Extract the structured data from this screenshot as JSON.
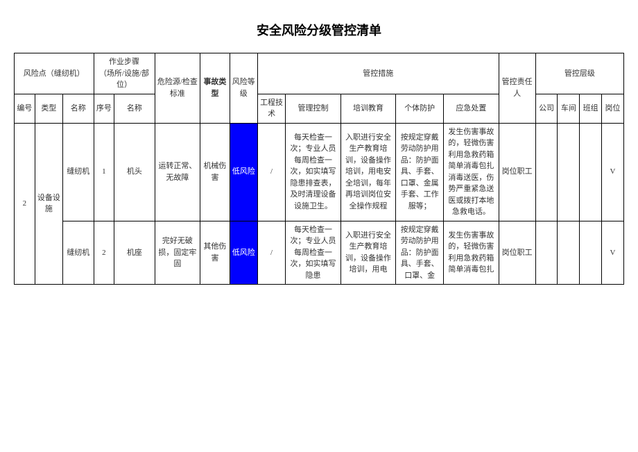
{
  "title": "安全风险分级管控清单",
  "headers": {
    "risk_point": "风险点（缝纫机）",
    "work_step": "作业步骤\n（场所/设施/部位）",
    "hazard_std": "危险源/检查标准",
    "accident_type": "事故类型",
    "risk_level": "风险等级",
    "control_measures": "管控措施",
    "responsible": "管控责任人",
    "control_level": "管控层级",
    "seq": "编号",
    "type": "类型",
    "name": "名称",
    "step_seq": "序号",
    "step_name": "名称",
    "engineering": "工程技术",
    "mgmt_control": "管理控制",
    "training": "培训教育",
    "ppe": "个体防护",
    "emergency": "应急处置",
    "company": "公司",
    "workshop": "车间",
    "team": "班组",
    "post": "岗位"
  },
  "group": {
    "seq": "2",
    "type": "设备设施"
  },
  "rows": [
    {
      "name": "缝纫机",
      "step_seq": "1",
      "step_name": "机头",
      "hazard_std": "运转正常、无故障",
      "accident_type": "机械伤害",
      "risk_level": "低风险",
      "engineering": "/",
      "mgmt_control": "每天检查一次；专业人员每周检查一次，如实填写隐患排查表，及时清理设备设施卫生。",
      "training": "入职进行安全生产教育培训，设备操作培训，用电安全培训，每年再培训岗位安全操作规程",
      "ppe": "按规定穿戴劳动防护用品：防护面具、手套、口罩、金属手套、工作服等；",
      "emergency": "发生伤害事故的，轻微伤害利用急救药箱简单消毒包扎消毒送医，伤势严重紧急送医或拨打本地急救电话。",
      "responsible": "岗位职工",
      "company": "",
      "workshop": "",
      "team": "",
      "post": "V"
    },
    {
      "name": "缝纫机",
      "step_seq": "2",
      "step_name": "机座",
      "hazard_std": "完好无破损，固定牢固",
      "accident_type": "其他伤害",
      "risk_level": "低风险",
      "engineering": "/",
      "mgmt_control": "每天检查一次；专业人员每周检查一次，如实填写隐患",
      "training": "入职进行安全生产教育培训，设备操作培训，用电",
      "ppe": "按规定穿戴劳动防护用品：防护面具、手套、口罩、金",
      "emergency": "发生伤害事故的，轻微伤害利用急救药箱简单消毒包扎",
      "responsible": "岗位职工",
      "company": "",
      "workshop": "",
      "team": "",
      "post": "V"
    }
  ],
  "colors": {
    "risk_low_bg": "#0000ff",
    "risk_low_fg": "#ffffff",
    "border": "#000000",
    "text": "#333333",
    "background": "#ffffff"
  }
}
